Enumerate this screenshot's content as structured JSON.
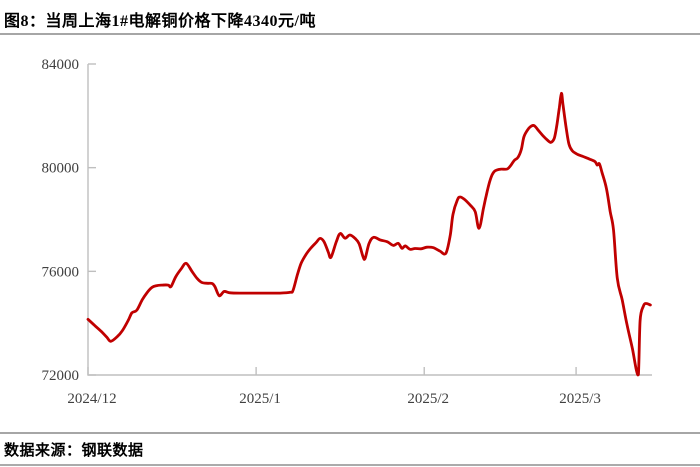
{
  "page": {
    "title": "图8：当周上海1#电解铜价格下降4340元/吨",
    "source": "数据来源：钢联数据"
  },
  "colors": {
    "line": "#c00000",
    "axis": "#bfbfbf",
    "tick_text": "#404040",
    "title_text": "#000000",
    "rule": "#a6a6a6",
    "background": "#ffffff"
  },
  "chart_data": {
    "type": "line",
    "title": "当周上海1#电解铜价格下降4340元/吨",
    "unit": "元/吨",
    "grid": false,
    "legend_position": "none",
    "ylim": [
      72000,
      84000
    ],
    "y_ticks": [
      72000,
      76000,
      80000,
      84000
    ],
    "x_encoding": "day offset from first x tick (2024/12)",
    "xlim_days": [
      0,
      104
    ],
    "x_ticks": [
      {
        "label": "2024/12",
        "day": 0
      },
      {
        "label": "2025/1",
        "day": 31
      },
      {
        "label": "2025/2",
        "day": 62
      },
      {
        "label": "2025/3",
        "day": 90
      }
    ],
    "series": [
      {
        "name": "上海1#电解铜价格(元/吨)",
        "points": [
          [
            0,
            74150
          ],
          [
            1.3,
            73900
          ],
          [
            2.6,
            73650
          ],
          [
            3.5,
            73450
          ],
          [
            4.2,
            73300
          ],
          [
            5.4,
            73480
          ],
          [
            6.3,
            73700
          ],
          [
            7.4,
            74100
          ],
          [
            8.1,
            74400
          ],
          [
            9,
            74500
          ],
          [
            10,
            74900
          ],
          [
            10.9,
            75180
          ],
          [
            11.8,
            75380
          ],
          [
            12.7,
            75450
          ],
          [
            13.7,
            75470
          ],
          [
            14.8,
            75470
          ],
          [
            15.3,
            75410
          ],
          [
            16.2,
            75800
          ],
          [
            17.2,
            76100
          ],
          [
            18.1,
            76310
          ],
          [
            19.2,
            75990
          ],
          [
            20.1,
            75730
          ],
          [
            21,
            75570
          ],
          [
            22.1,
            75540
          ],
          [
            22.9,
            75530
          ],
          [
            23.4,
            75410
          ],
          [
            24.2,
            75060
          ],
          [
            25.1,
            75220
          ],
          [
            26.2,
            75170
          ],
          [
            28,
            75160
          ],
          [
            30,
            75160
          ],
          [
            32,
            75160
          ],
          [
            34,
            75160
          ],
          [
            35.4,
            75160
          ],
          [
            37.3,
            75190
          ],
          [
            37.8,
            75260
          ],
          [
            38.6,
            75860
          ],
          [
            39.3,
            76310
          ],
          [
            40.2,
            76650
          ],
          [
            41.1,
            76900
          ],
          [
            42.1,
            77120
          ],
          [
            42.8,
            77270
          ],
          [
            43.5,
            77150
          ],
          [
            44.3,
            76750
          ],
          [
            44.8,
            76540
          ],
          [
            45.8,
            77150
          ],
          [
            46.5,
            77460
          ],
          [
            47.4,
            77280
          ],
          [
            48.3,
            77400
          ],
          [
            49.3,
            77260
          ],
          [
            50,
            77060
          ],
          [
            50.7,
            76570
          ],
          [
            51.1,
            76500
          ],
          [
            51.8,
            77060
          ],
          [
            52.6,
            77310
          ],
          [
            53.9,
            77210
          ],
          [
            55.2,
            77140
          ],
          [
            56.3,
            77000
          ],
          [
            57.2,
            77080
          ],
          [
            57.9,
            76890
          ],
          [
            58.5,
            76980
          ],
          [
            59.4,
            76850
          ],
          [
            60.3,
            76880
          ],
          [
            61.4,
            76870
          ],
          [
            62.5,
            76930
          ],
          [
            63.7,
            76910
          ],
          [
            64.9,
            76780
          ],
          [
            66,
            76700
          ],
          [
            66.8,
            77400
          ],
          [
            67.3,
            78200
          ],
          [
            68.1,
            78750
          ],
          [
            68.6,
            78870
          ],
          [
            69.4,
            78780
          ],
          [
            70.5,
            78550
          ],
          [
            71.4,
            78300
          ],
          [
            72.1,
            77660
          ],
          [
            72.9,
            78400
          ],
          [
            73.4,
            78900
          ],
          [
            74.2,
            79550
          ],
          [
            74.9,
            79850
          ],
          [
            76,
            79940
          ],
          [
            77.3,
            79950
          ],
          [
            78,
            80100
          ],
          [
            78.6,
            80280
          ],
          [
            79.3,
            80400
          ],
          [
            79.9,
            80700
          ],
          [
            80.4,
            81200
          ],
          [
            81.2,
            81500
          ],
          [
            81.7,
            81600
          ],
          [
            82.3,
            81620
          ],
          [
            83,
            81450
          ],
          [
            83.9,
            81230
          ],
          [
            84.9,
            81030
          ],
          [
            85.4,
            80980
          ],
          [
            86,
            81150
          ],
          [
            86.5,
            81700
          ],
          [
            86.9,
            82300
          ],
          [
            87.3,
            82870
          ],
          [
            87.6,
            82400
          ],
          [
            88.2,
            81500
          ],
          [
            88.7,
            80900
          ],
          [
            89.3,
            80650
          ],
          [
            90.2,
            80520
          ],
          [
            91.3,
            80430
          ],
          [
            92.6,
            80320
          ],
          [
            93.5,
            80230
          ],
          [
            93.9,
            80100
          ],
          [
            94.3,
            80150
          ],
          [
            94.8,
            79800
          ],
          [
            95.6,
            79200
          ],
          [
            96.3,
            78300
          ],
          [
            96.9,
            77600
          ],
          [
            97.6,
            75730
          ],
          [
            98.5,
            74900
          ],
          [
            99.4,
            73930
          ],
          [
            100.4,
            73000
          ],
          [
            101.1,
            72200
          ],
          [
            101.5,
            72020
          ],
          [
            101.8,
            74100
          ],
          [
            102.4,
            74650
          ],
          [
            102.9,
            74760
          ],
          [
            103.7,
            74700
          ]
        ]
      }
    ]
  }
}
